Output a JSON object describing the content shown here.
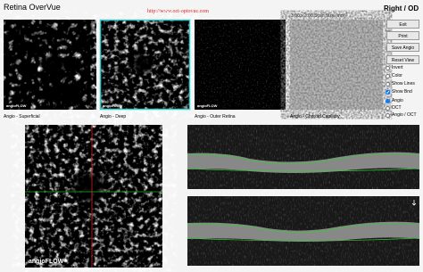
{
  "header": {
    "title": "Retina OverVue",
    "url": "http://www.oct-optovue.com",
    "eye": "Right / OD",
    "scan_size": "3.00 x 3.00 Scan Size (mm)"
  },
  "buttons": [
    "Exit",
    "Print",
    "Save Angio",
    "Reset View"
  ],
  "checkboxes": [
    {
      "label": "Invert",
      "checked": false
    },
    {
      "label": "Color",
      "checked": false
    },
    {
      "label": "Show Lines",
      "checked": false
    },
    {
      "label": "Show Bnd",
      "checked": true
    }
  ],
  "radios": [
    {
      "label": "Angio",
      "selected": true
    },
    {
      "label": "OCT",
      "selected": false
    },
    {
      "label": "Angio / OCT",
      "selected": false
    }
  ],
  "thumbnails": [
    {
      "label": "Angio - Superficial",
      "watermark": "angioFLOW"
    },
    {
      "label": "Angio - Deep",
      "watermark": "angioFLOW"
    },
    {
      "label": "Angio - Outer Retina",
      "watermark": "angioFLOW"
    },
    {
      "label": "Angio - Choroid Capillary"
    }
  ],
  "main_image": {
    "watermark": "angioFLOW"
  }
}
